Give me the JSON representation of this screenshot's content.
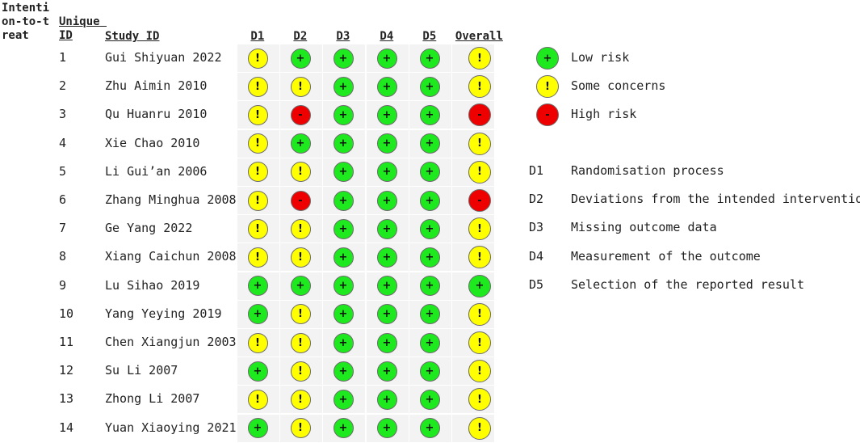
{
  "chart_data": {
    "type": "table",
    "header": {
      "itt": "Intention-to-treat",
      "uid": "Unique ID",
      "study": "Study ID",
      "domains": [
        "D1",
        "D2",
        "D3",
        "D4",
        "D5",
        "Overall"
      ]
    },
    "rows": [
      {
        "id": "1",
        "study": "Gui Shiyuan 2022",
        "judgements": [
          "some",
          "low",
          "low",
          "low",
          "low",
          "some"
        ]
      },
      {
        "id": "2",
        "study": "Zhu Aimin 2010",
        "judgements": [
          "some",
          "some",
          "low",
          "low",
          "low",
          "some"
        ]
      },
      {
        "id": "3",
        "study": "Qu Huanru 2010",
        "judgements": [
          "some",
          "high",
          "low",
          "low",
          "low",
          "high"
        ]
      },
      {
        "id": "4",
        "study": "Xie Chao 2010",
        "judgements": [
          "some",
          "low",
          "low",
          "low",
          "low",
          "some"
        ]
      },
      {
        "id": "5",
        "study": "Li Gui’an 2006",
        "judgements": [
          "some",
          "some",
          "low",
          "low",
          "low",
          "some"
        ]
      },
      {
        "id": "6",
        "study": "Zhang Minghua 2008",
        "judgements": [
          "some",
          "high",
          "low",
          "low",
          "low",
          "high"
        ]
      },
      {
        "id": "7",
        "study": "Ge Yang 2022",
        "judgements": [
          "some",
          "some",
          "low",
          "low",
          "low",
          "some"
        ]
      },
      {
        "id": "8",
        "study": "Xiang Caichun 2008",
        "judgements": [
          "some",
          "some",
          "low",
          "low",
          "low",
          "some"
        ]
      },
      {
        "id": "9",
        "study": "Lu Sihao 2019",
        "judgements": [
          "low",
          "low",
          "low",
          "low",
          "low",
          "low"
        ]
      },
      {
        "id": "10",
        "study": "Yang Yeying 2019",
        "judgements": [
          "low",
          "some",
          "low",
          "low",
          "low",
          "some"
        ]
      },
      {
        "id": "11",
        "study": "Chen Xiangjun 2003",
        "judgements": [
          "some",
          "some",
          "low",
          "low",
          "low",
          "some"
        ]
      },
      {
        "id": "12",
        "study": "Su Li 2007",
        "judgements": [
          "low",
          "some",
          "low",
          "low",
          "low",
          "some"
        ]
      },
      {
        "id": "13",
        "study": "Zhong Li 2007",
        "judgements": [
          "some",
          "some",
          "low",
          "low",
          "low",
          "some"
        ]
      },
      {
        "id": "14",
        "study": "Yuan Xiaoying 2021",
        "judgements": [
          "low",
          "some",
          "low",
          "low",
          "low",
          "some"
        ]
      }
    ],
    "legend": [
      {
        "key": "low",
        "label": "Low risk",
        "symbol": "+",
        "color": "#1ee81e"
      },
      {
        "key": "some",
        "label": "Some concerns",
        "symbol": "!",
        "color": "#ffff00"
      },
      {
        "key": "high",
        "label": "High risk",
        "symbol": "-",
        "color": "#ee0000"
      }
    ],
    "domain_key": [
      {
        "code": "D1",
        "description": "Randomisation process"
      },
      {
        "code": "D2",
        "description": "Deviations from the intended interventions"
      },
      {
        "code": "D3",
        "description": "Missing outcome data"
      },
      {
        "code": "D4",
        "description": "Measurement of the outcome"
      },
      {
        "code": "D5",
        "description": "Selection of the reported result"
      }
    ]
  }
}
